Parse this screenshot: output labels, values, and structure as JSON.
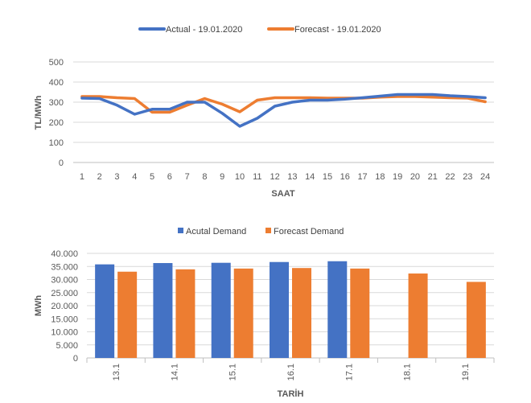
{
  "chart_data": [
    {
      "type": "line",
      "x": [
        1,
        2,
        3,
        4,
        5,
        6,
        7,
        8,
        9,
        10,
        11,
        12,
        13,
        14,
        15,
        16,
        17,
        18,
        19,
        20,
        21,
        22,
        23,
        24
      ],
      "series": [
        {
          "name": "Actual - 19.01.2020",
          "color": "#4472C4",
          "values": [
            320,
            318,
            285,
            240,
            265,
            265,
            300,
            300,
            245,
            180,
            220,
            280,
            300,
            310,
            310,
            315,
            322,
            330,
            338,
            338,
            338,
            332,
            328,
            322
          ]
        },
        {
          "name": "Forecast - 19.01.2020",
          "color": "#ED7D31",
          "values": [
            328,
            328,
            322,
            318,
            250,
            250,
            285,
            318,
            290,
            252,
            310,
            322,
            322,
            322,
            320,
            320,
            320,
            325,
            328,
            328,
            325,
            322,
            320,
            302
          ]
        }
      ],
      "xlabel": "SAAT",
      "ylabel": "TL/MWh",
      "ylim": [
        0,
        500
      ],
      "yticks": [
        "0",
        "100",
        "200",
        "300",
        "400",
        "500"
      ],
      "grid": true,
      "legend": "top"
    },
    {
      "type": "bar",
      "categories": [
        "13.1",
        "14.1",
        "15.1",
        "16.1",
        "17.1",
        "18.1",
        "19.1"
      ],
      "series": [
        {
          "name": "Acutal Demand",
          "color": "#4472C4",
          "values": [
            35800,
            36300,
            36400,
            36700,
            37000,
            null,
            null
          ]
        },
        {
          "name": "Forecast Demand",
          "color": "#ED7D31",
          "values": [
            33000,
            33900,
            34200,
            34400,
            34200,
            32300,
            29100
          ]
        }
      ],
      "xlabel": "TARİH",
      "ylabel": "MWh",
      "ylim": [
        0,
        40000
      ],
      "yticks": [
        "0",
        "5.000",
        "10.000",
        "15.000",
        "20.000",
        "25.000",
        "30.000",
        "35.000",
        "40.000"
      ],
      "grid": true,
      "legend": "top"
    }
  ]
}
